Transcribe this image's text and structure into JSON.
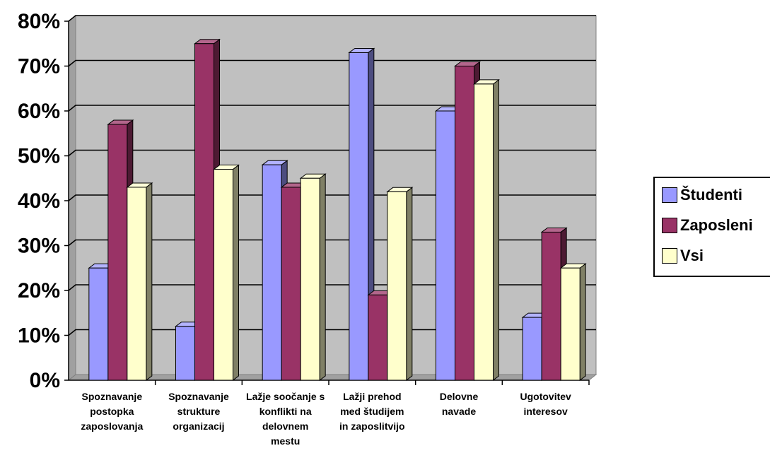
{
  "chart_data": {
    "type": "bar",
    "categories": [
      [
        "Spoznavanje",
        "postopka",
        "zaposlovanja"
      ],
      [
        "Spoznavanje",
        "strukture",
        "organizacij"
      ],
      [
        "Lažje soočanje s",
        "konflikti na",
        "delovnem",
        "mestu"
      ],
      [
        "Lažji prehod",
        "med študijem",
        "in zaposlitvijo"
      ],
      [
        "Delovne",
        "navade"
      ],
      [
        "Ugotovitev",
        "interesov"
      ]
    ],
    "series": [
      {
        "name": "Študenti",
        "color": "#9999FF",
        "values": [
          25,
          12,
          48,
          73,
          60,
          14
        ]
      },
      {
        "name": "Zaposleni",
        "color": "#993366",
        "values": [
          57,
          75,
          43,
          19,
          70,
          33
        ]
      },
      {
        "name": "Vsi",
        "color": "#FFFFCC",
        "values": [
          43,
          47,
          45,
          42,
          66,
          25
        ]
      }
    ],
    "ylim": [
      0,
      80
    ],
    "yticks": [
      "0%",
      "10%",
      "20%",
      "30%",
      "40%",
      "50%",
      "60%",
      "70%",
      "80%"
    ],
    "grid": true,
    "legend_position": "right",
    "title": "",
    "xlabel": "",
    "ylabel": ""
  }
}
